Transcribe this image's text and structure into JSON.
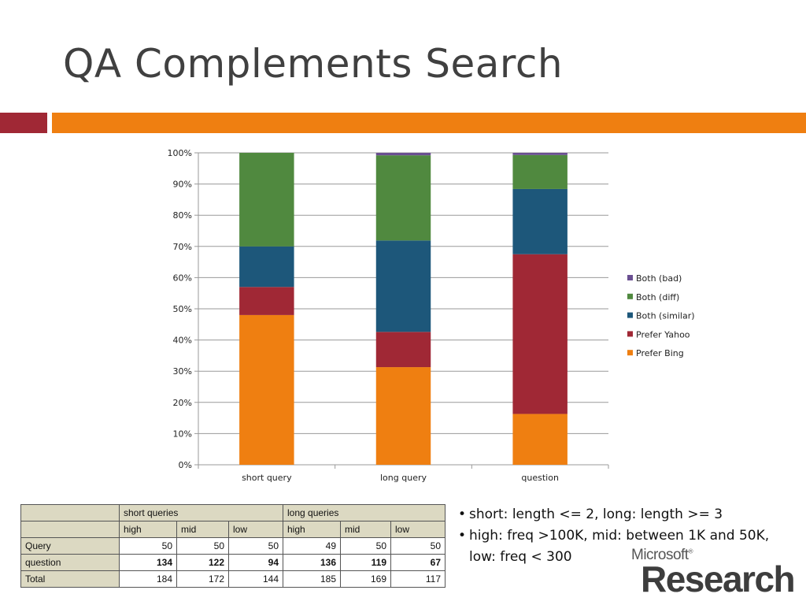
{
  "slide": {
    "title": "QA Complements Search"
  },
  "chart_data": {
    "type": "bar",
    "stacked": true,
    "percent_stacked": true,
    "categories": [
      "short query",
      "long query",
      "question"
    ],
    "series": [
      {
        "name": "Prefer Bing",
        "color": "#ef7f11",
        "values": [
          48,
          31.3,
          16.3
        ]
      },
      {
        "name": "Prefer Yahoo",
        "color": "#a02835",
        "values": [
          9,
          11.3,
          51.2
        ]
      },
      {
        "name": "Both (similar)",
        "color": "#1d577a",
        "values": [
          13,
          29.3,
          20.9
        ]
      },
      {
        "name": "Both (diff)",
        "color": "#50893f",
        "values": [
          30,
          27.3,
          10.9
        ]
      },
      {
        "name": "Both (bad)",
        "color": "#6a4f91",
        "values": [
          0,
          0.8,
          0.7
        ]
      }
    ],
    "y_ticks": [
      "0%",
      "10%",
      "20%",
      "30%",
      "40%",
      "50%",
      "60%",
      "70%",
      "80%",
      "90%",
      "100%"
    ],
    "ylim": [
      0,
      100
    ],
    "grid": true,
    "legend_position": "right",
    "legend_order": [
      "Both (bad)",
      "Both (diff)",
      "Both (similar)",
      "Prefer Yahoo",
      "Prefer Bing"
    ]
  },
  "table": {
    "groups": [
      "short queries",
      "long queries"
    ],
    "subheaders": [
      "high",
      "mid",
      "low",
      "high",
      "mid",
      "low"
    ],
    "rows": [
      {
        "label": "Query",
        "values": [
          "50",
          "50",
          "50",
          "49",
          "50",
          "50"
        ],
        "bold": false
      },
      {
        "label": "question",
        "values": [
          "134",
          "122",
          "94",
          "136",
          "119",
          "67"
        ],
        "bold": true
      },
      {
        "label": "Total",
        "values": [
          "184",
          "172",
          "144",
          "185",
          "169",
          "117"
        ],
        "bold": false
      }
    ]
  },
  "notes": [
    "short: length <= 2, long: length >= 3",
    "high: freq >100K, mid: between 1K and 50K,",
    "low: freq < 300"
  ],
  "logo": {
    "line1": "Microsoft",
    "mark": "®",
    "line2": "Research"
  }
}
